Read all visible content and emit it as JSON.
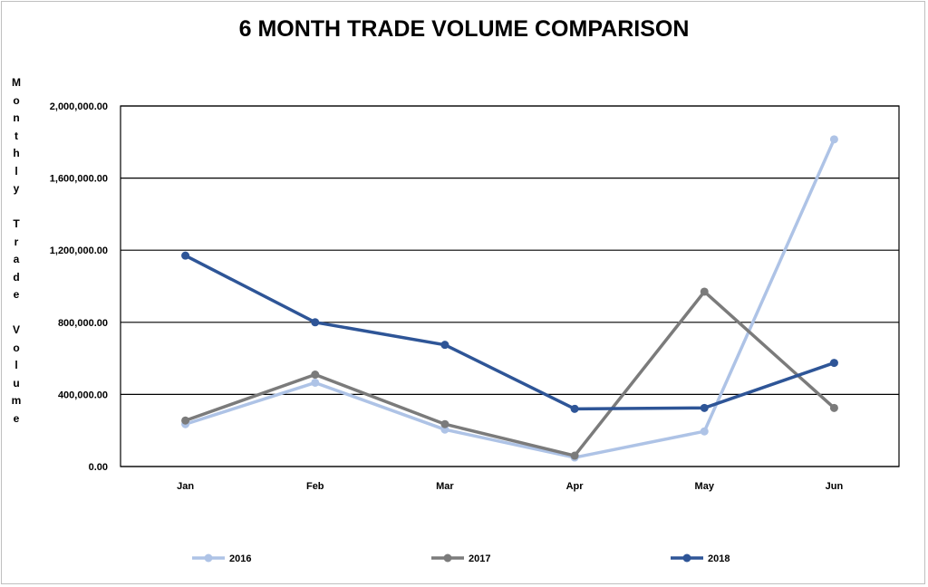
{
  "chart_data": {
    "type": "line",
    "title": "6 MONTH TRADE VOLUME COMPARISON",
    "ylabel": "Monthly Trade Volume",
    "xlabel": "",
    "categories": [
      "Jan",
      "Feb",
      "Mar",
      "Apr",
      "May",
      "Jun"
    ],
    "ylim": [
      0,
      2000000
    ],
    "yticks": [
      0,
      400000,
      800000,
      1200000,
      1600000,
      2000000
    ],
    "ytick_labels": [
      "0.00",
      "400,000.00",
      "800,000.00",
      "1,200,000.00",
      "1,600,000.00",
      "2,000,000.00"
    ],
    "grid": true,
    "legend_position": "bottom",
    "series": [
      {
        "name": "2016",
        "color": "#aec3e6",
        "values": [
          235000,
          465000,
          205000,
          50000,
          195000,
          1815000
        ]
      },
      {
        "name": "2017",
        "color": "#7b7b7b",
        "values": [
          255000,
          510000,
          235000,
          60000,
          970000,
          325000
        ]
      },
      {
        "name": "2018",
        "color": "#2e5597",
        "values": [
          1170000,
          800000,
          675000,
          320000,
          325000,
          575000
        ]
      }
    ]
  }
}
